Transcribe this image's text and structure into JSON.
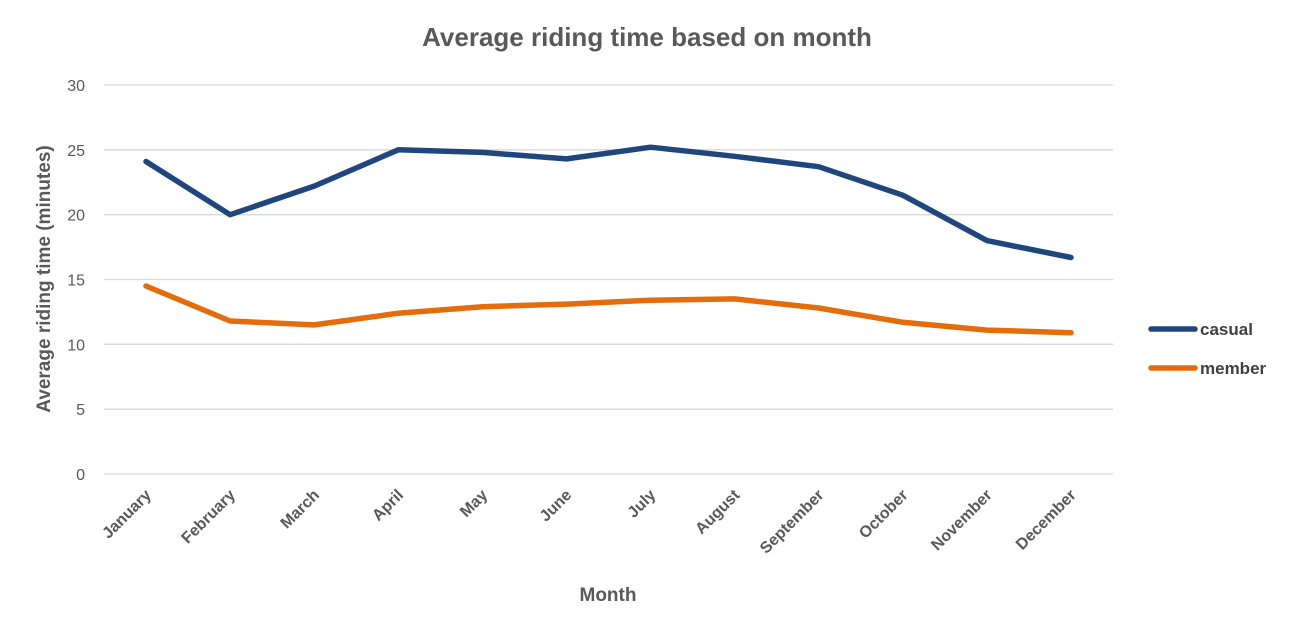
{
  "chart_data": {
    "type": "line",
    "title": "Average riding time based on month",
    "xlabel": "Month",
    "ylabel": "Average riding time (minutes)",
    "ylim": [
      0,
      30
    ],
    "yticks": [
      0,
      5,
      10,
      15,
      20,
      25,
      30
    ],
    "grid": true,
    "legend_position": "right",
    "categories": [
      "January",
      "February",
      "March",
      "April",
      "May",
      "June",
      "July",
      "August",
      "September",
      "October",
      "November",
      "December"
    ],
    "series": [
      {
        "name": "casual",
        "color": "#1f477e",
        "values": [
          24.1,
          20.0,
          22.2,
          25.0,
          24.8,
          24.3,
          25.2,
          24.5,
          23.7,
          21.5,
          18.0,
          16.7
        ]
      },
      {
        "name": "member",
        "color": "#e46c0a",
        "values": [
          14.5,
          11.8,
          11.5,
          12.4,
          12.9,
          13.1,
          13.4,
          13.5,
          12.8,
          11.7,
          11.1,
          10.9
        ]
      }
    ]
  }
}
